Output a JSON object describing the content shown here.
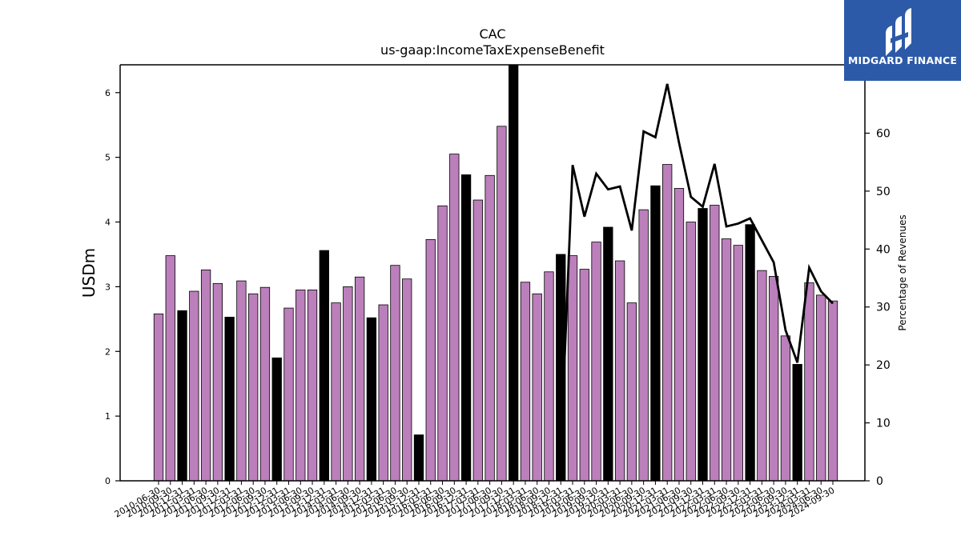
{
  "brand": {
    "name": "MIDGARD FINANCE",
    "bg_color": "#2d5aa8",
    "icon": "midgard-m-logo-icon"
  },
  "chart_data": {
    "type": "bar",
    "title": "CAC",
    "subtitle": "us-gaap:IncomeTaxExpenseBenefit",
    "ylabel": "USDm",
    "y2label": "Percentage of Revenues",
    "ylim": [
      0,
      6.43
    ],
    "y2lim": [
      0,
      71.8
    ],
    "yticks": [
      0,
      1,
      2,
      3,
      4,
      5,
      6
    ],
    "y2ticks": [
      0,
      10,
      20,
      30,
      40,
      50,
      60
    ],
    "grid": false,
    "colors": {
      "quarter_bar": "#bb7fbb",
      "fiscal_year_bar": "#000000",
      "edge": "#000000",
      "line": "#000000"
    },
    "categories": [
      "2010-06-30",
      "2010-09-30",
      "2010-12-31",
      "2011-03-31",
      "2011-06-30",
      "2011-09-30",
      "2011-12-31",
      "2012-03-31",
      "2012-06-30",
      "2012-09-30",
      "2012-12-31",
      "2013-03-31",
      "2013-06-30",
      "2013-09-30",
      "2013-12-31",
      "2014-03-31",
      "2014-06-30",
      "2014-09-30",
      "2014-12-31",
      "2015-03-31",
      "2015-06-30",
      "2015-09-30",
      "2015-12-31",
      "2016-03-31",
      "2016-06-30",
      "2016-09-30",
      "2016-12-31",
      "2017-03-31",
      "2017-06-30",
      "2017-09-30",
      "2017-12-31",
      "2018-03-31",
      "2018-06-30",
      "2018-09-30",
      "2018-12-31",
      "2019-03-31",
      "2019-06-30",
      "2019-09-30",
      "2019-12-31",
      "2020-03-31",
      "2020-06-30",
      "2020-09-30",
      "2020-12-31",
      "2021-03-31",
      "2021-06-30",
      "2021-09-30",
      "2021-12-31",
      "2022-03-31",
      "2022-06-30",
      "2022-09-30",
      "2022-12-31",
      "2023-03-31",
      "2023-06-30",
      "2023-09-30",
      "2023-12-31",
      "2024-03-31",
      "2024-06-30",
      "2024-09-30"
    ],
    "series": [
      {
        "values": [
          2.58,
          3.48,
          2.63,
          2.93,
          3.26,
          3.05,
          2.53,
          3.09,
          2.89,
          2.99,
          1.9,
          2.67,
          2.95,
          2.95,
          3.56,
          2.75,
          3.0,
          3.15,
          2.52,
          2.72,
          3.33,
          3.12,
          0.71,
          3.73,
          4.25,
          5.05,
          4.73,
          4.34,
          4.72,
          5.48,
          6.43,
          3.07,
          2.89,
          3.23,
          3.5,
          3.48,
          3.27,
          3.69,
          3.92,
          3.4,
          2.75,
          4.19,
          4.56,
          4.89,
          4.52,
          4.0,
          4.21,
          4.26,
          3.74,
          3.64,
          3.96,
          3.25,
          3.16,
          2.24,
          1.8,
          3.06,
          2.87,
          2.78
        ],
        "fiscal_year_end": [
          false,
          false,
          true,
          false,
          false,
          false,
          true,
          false,
          false,
          false,
          true,
          false,
          false,
          false,
          true,
          false,
          false,
          false,
          true,
          false,
          false,
          false,
          true,
          false,
          false,
          false,
          true,
          false,
          false,
          false,
          true,
          false,
          false,
          false,
          true,
          false,
          false,
          false,
          true,
          false,
          false,
          false,
          true,
          false,
          false,
          false,
          true,
          false,
          false,
          false,
          true,
          false,
          false,
          false,
          true,
          false,
          false,
          false
        ]
      },
      {
        "axis": "right",
        "type": "line",
        "values": [
          null,
          null,
          null,
          null,
          null,
          null,
          null,
          null,
          null,
          null,
          null,
          null,
          null,
          null,
          null,
          null,
          null,
          null,
          null,
          null,
          null,
          null,
          null,
          null,
          null,
          null,
          null,
          null,
          null,
          null,
          null,
          null,
          null,
          null,
          5.0,
          54.5,
          45.6,
          53.0,
          50.3,
          50.8,
          43.2,
          60.3,
          59.3,
          68.5,
          58.3,
          49.0,
          47.3,
          54.7,
          43.9,
          44.4,
          45.3,
          41.5,
          37.7,
          26.0,
          20.4,
          36.8,
          32.7,
          30.6
        ]
      }
    ]
  }
}
